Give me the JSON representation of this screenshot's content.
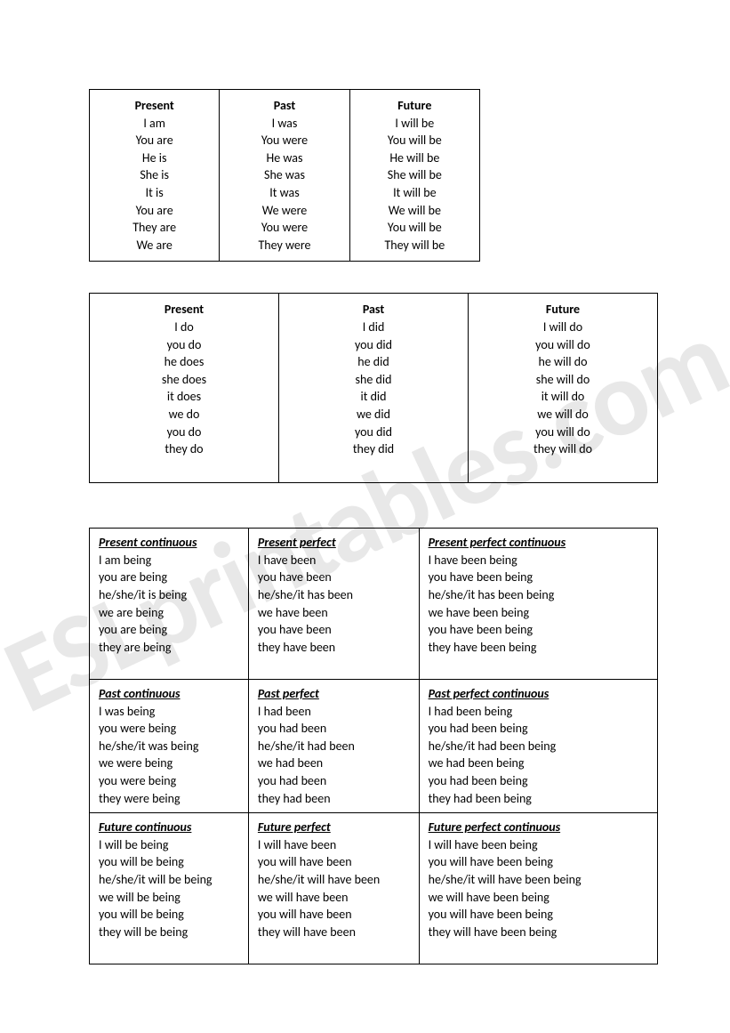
{
  "watermark": "ESLprintables.com",
  "table1": {
    "cols": [
      {
        "header": "Present",
        "rows": [
          "I am",
          "You are",
          "He  is",
          "She is",
          "It is",
          "You are",
          "They are",
          "We are"
        ]
      },
      {
        "header": "Past",
        "rows": [
          "I was",
          "You were",
          "He was",
          "She was",
          "It was",
          "We were",
          "You were",
          "They were"
        ]
      },
      {
        "header": "Future",
        "rows": [
          "I will be",
          "You will be",
          "He will be",
          "She will be",
          "It will be",
          "We will be",
          "You will be",
          "They will be"
        ]
      }
    ]
  },
  "table2": {
    "cols": [
      {
        "header": "Present",
        "rows": [
          "I  do",
          "you  do",
          "he   does",
          "she does",
          "it does",
          "we  do",
          "you do",
          "they do"
        ]
      },
      {
        "header": "Past",
        "rows": [
          "I  did",
          "you did",
          "he  did",
          "she did",
          "it did",
          "we  did",
          "you did",
          "they did"
        ]
      },
      {
        "header": "Future",
        "rows": [
          "I  will do",
          "you  will do",
          "he will do",
          "she will do",
          "it will do",
          "we  will do",
          "you will do",
          "they will do"
        ]
      }
    ]
  },
  "table3": {
    "rows": [
      [
        {
          "header": "Present continuous",
          "lines": [
            "I am being",
            "you are being",
            "he/she/it is being",
            "we are being",
            "you are being",
            "they are being",
            ""
          ]
        },
        {
          "header": "Present perfect",
          "lines": [
            "I have been",
            "you have been",
            "he/she/it has been",
            "we have been",
            "you have been",
            "they have been"
          ]
        },
        {
          "header": "Present perfect continuous",
          "lines": [
            "I have been being",
            "you have been being",
            "he/she/it has been being",
            "we have been being",
            "you have been being",
            "they have been being"
          ]
        }
      ],
      [
        {
          "header": "Past continuous",
          "lines": [
            "I was being",
            "you were being",
            "he/she/it was being",
            "we were being",
            "you were being",
            "they were being"
          ]
        },
        {
          "header": "Past perfect",
          "lines": [
            "I had been",
            "you had been",
            "he/she/it had been",
            "we had been",
            "you had been",
            "they had been"
          ]
        },
        {
          "header": "Past perfect continuous",
          "lines": [
            "I had been being",
            "you had been being",
            "he/she/it had been being",
            "we had been being",
            "you had been being",
            "they had been being"
          ]
        }
      ],
      [
        {
          "header": "Future continuous",
          "lines": [
            "I will be being",
            "you will be being",
            "he/she/it will be being",
            "we will be being",
            "you will be being",
            "they will be being",
            ""
          ]
        },
        {
          "header": "Future perfect",
          "lines": [
            "I will have been",
            "you will have been",
            "he/she/it will have been",
            "we will have been",
            "you will have been",
            "they will have been"
          ]
        },
        {
          "header": "Future perfect continuous",
          "lines": [
            "I will have been being",
            "you will have been being",
            "he/she/it will have been being",
            "we will have been being",
            "you will have been being",
            "they will have been being"
          ]
        }
      ]
    ]
  }
}
